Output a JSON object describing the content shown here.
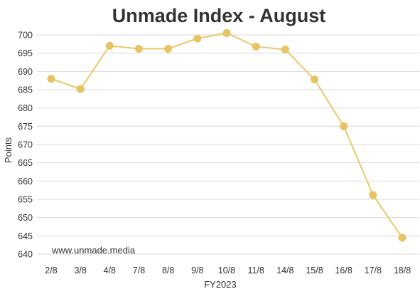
{
  "chart_data": {
    "type": "line",
    "title": "Unmade Index - August",
    "xlabel": "FY2023",
    "ylabel": "Points",
    "categories": [
      "2/8",
      "3/8",
      "4/8",
      "7/8",
      "8/8",
      "9/8",
      "10/8",
      "11/8",
      "14/8",
      "15/8",
      "16/8",
      "17/8",
      "18/8"
    ],
    "series": [
      {
        "values": [
          688,
          685.2,
          697,
          696.2,
          696.2,
          699,
          700.5,
          696.8,
          696,
          687.8,
          675,
          656.2,
          644.5
        ]
      }
    ],
    "ylim": [
      640,
      700
    ],
    "yticks": [
      640,
      645,
      650,
      655,
      660,
      665,
      670,
      675,
      680,
      685,
      690,
      695,
      700
    ],
    "grid": true,
    "legend": "none",
    "annotation": "www.unmade.media",
    "colors": {
      "line": "#ebc96a",
      "marker": "#e8c363",
      "grid": "#d9d9d9",
      "text": "#333333"
    }
  }
}
